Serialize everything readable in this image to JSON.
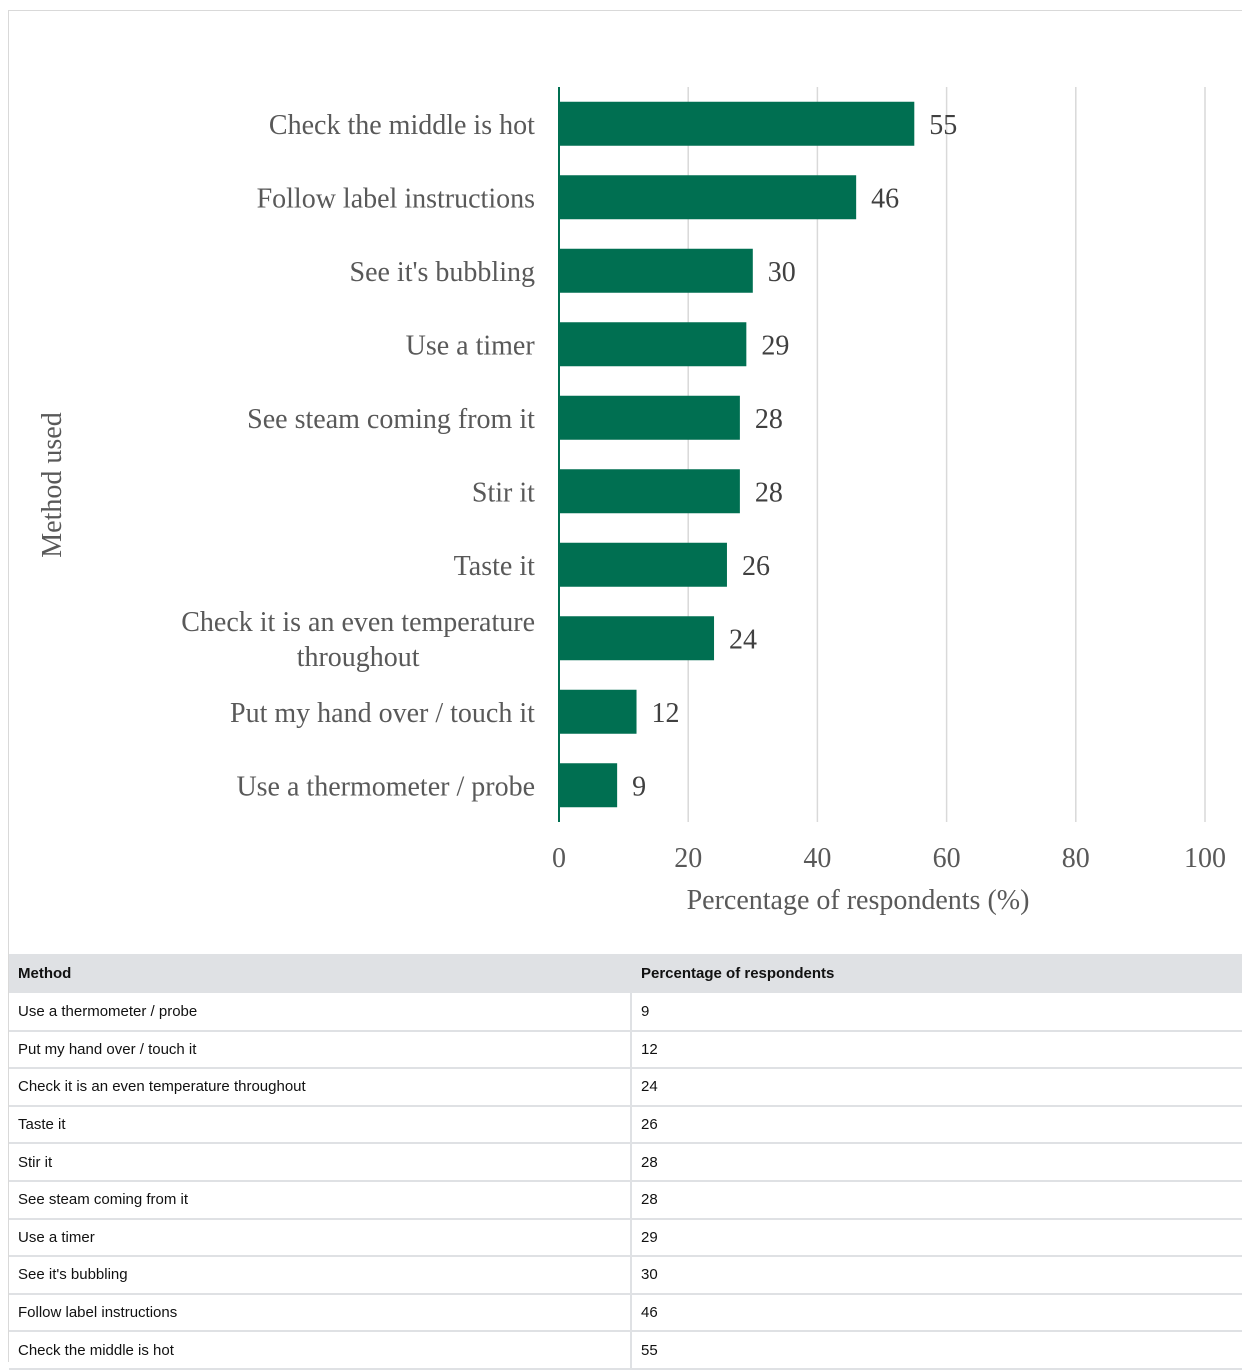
{
  "chart_data": {
    "type": "bar",
    "orientation": "horizontal",
    "categories": [
      "Check the middle is hot",
      "Follow label instructions",
      "See it's bubbling",
      "Use a timer",
      "See steam coming from it",
      "Stir it",
      "Taste it",
      "Check it is an even temperature throughout",
      "Put my hand over / touch it",
      "Use a thermometer / probe"
    ],
    "category_lines": [
      [
        "Check the middle is hot"
      ],
      [
        "Follow label instructions"
      ],
      [
        "See it's bubbling"
      ],
      [
        "Use a timer"
      ],
      [
        "See steam coming from it"
      ],
      [
        "Stir it"
      ],
      [
        "Taste it"
      ],
      [
        "Check it is an even temperature",
        "throughout"
      ],
      [
        "Put my hand over / touch it"
      ],
      [
        "Use a thermometer / probe"
      ]
    ],
    "values": [
      55,
      46,
      30,
      29,
      28,
      28,
      26,
      24,
      12,
      9
    ],
    "xlabel": "Percentage of respondents (%)",
    "ylabel": "Method used",
    "xlim": [
      0,
      100
    ],
    "xticks": [
      0,
      20,
      40,
      60,
      80,
      100
    ],
    "grid": "vertical",
    "bar_color": "#006f51",
    "data_labels": true
  },
  "table": {
    "headers": [
      "Method",
      "Percentage of respondents"
    ],
    "rows": [
      [
        "Use a thermometer / probe",
        "9"
      ],
      [
        "Put my hand over / touch it",
        "12"
      ],
      [
        "Check it is an even temperature throughout",
        "24"
      ],
      [
        "Taste it",
        "26"
      ],
      [
        "Stir it",
        "28"
      ],
      [
        "See steam coming from it",
        "28"
      ],
      [
        "Use a timer",
        "29"
      ],
      [
        "See it's bubbling",
        "30"
      ],
      [
        "Follow label instructions",
        "46"
      ],
      [
        "Check the middle is hot",
        "55"
      ]
    ]
  }
}
